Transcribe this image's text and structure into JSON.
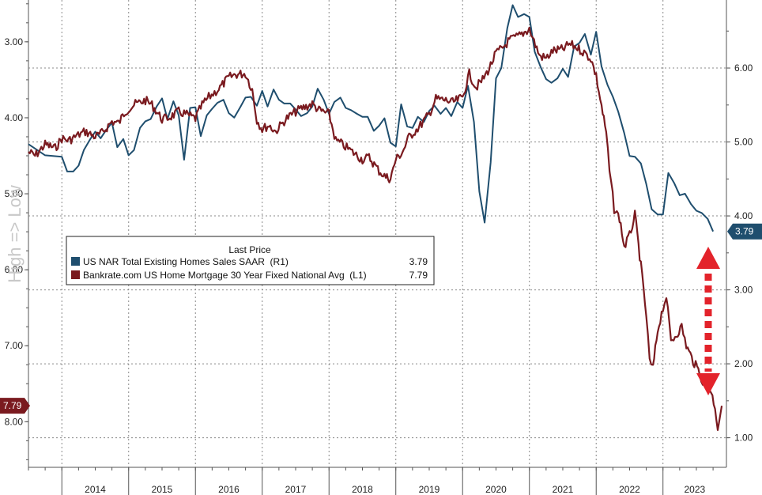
{
  "chart_data": {
    "type": "line",
    "legend": {
      "title": "Last Price",
      "placement": "center-left",
      "entries": [
        {
          "label": "US NAR Total Existing Homes Sales SAAR  (R1)",
          "value": "3.79",
          "color": "#1f4e6e"
        },
        {
          "label": "Bankrate.com US Home Mortgage 30 Year Fixed National Avg  (L1)",
          "value": "7.79",
          "color": "#7a1a1f"
        }
      ]
    },
    "side_annotation": "High => Low",
    "x_years": [
      "2014",
      "2015",
      "2016",
      "2017",
      "2018",
      "2019",
      "2020",
      "2021",
      "2022",
      "2023"
    ],
    "x_range": [
      2013.5,
      2023.95
    ],
    "left_axis": {
      "inverted": true,
      "range": [
        2.45,
        8.6
      ],
      "ticks": [
        "3.00",
        "4.00",
        "5.00",
        "6.00",
        "7.00",
        "8.00"
      ],
      "last_value_label": "7.79"
    },
    "right_axis": {
      "range": [
        0.6,
        6.92
      ],
      "ticks": [
        "1.00",
        "2.00",
        "3.00",
        "4.00",
        "5.00",
        "6.00"
      ],
      "last_value_label": "3.79"
    },
    "grid": true,
    "series": [
      {
        "name": "US NAR Total Existing Homes Sales SAAR  (R1)",
        "axis": "right",
        "color": "#1f4e6e",
        "points": [
          [
            2013.5,
            4.97
          ],
          [
            2013.75,
            4.82
          ],
          [
            2014.0,
            4.8
          ],
          [
            2014.08,
            4.6
          ],
          [
            2014.17,
            4.6
          ],
          [
            2014.25,
            4.68
          ],
          [
            2014.33,
            4.89
          ],
          [
            2014.42,
            5.03
          ],
          [
            2014.5,
            5.14
          ],
          [
            2014.58,
            5.05
          ],
          [
            2014.67,
            5.17
          ],
          [
            2014.75,
            5.26
          ],
          [
            2014.83,
            4.93
          ],
          [
            2014.92,
            5.04
          ],
          [
            2015.0,
            4.82
          ],
          [
            2015.08,
            4.89
          ],
          [
            2015.17,
            5.19
          ],
          [
            2015.25,
            5.28
          ],
          [
            2015.33,
            5.31
          ],
          [
            2015.42,
            5.48
          ],
          [
            2015.5,
            5.59
          ],
          [
            2015.58,
            5.31
          ],
          [
            2015.67,
            5.55
          ],
          [
            2015.75,
            5.36
          ],
          [
            2015.83,
            4.76
          ],
          [
            2015.92,
            5.46
          ],
          [
            2016.0,
            5.47
          ],
          [
            2016.08,
            5.08
          ],
          [
            2016.17,
            5.36
          ],
          [
            2016.25,
            5.45
          ],
          [
            2016.33,
            5.53
          ],
          [
            2016.42,
            5.57
          ],
          [
            2016.5,
            5.39
          ],
          [
            2016.58,
            5.33
          ],
          [
            2016.67,
            5.47
          ],
          [
            2016.75,
            5.6
          ],
          [
            2016.83,
            5.61
          ],
          [
            2016.92,
            5.49
          ],
          [
            2017.0,
            5.69
          ],
          [
            2017.08,
            5.48
          ],
          [
            2017.17,
            5.71
          ],
          [
            2017.25,
            5.57
          ],
          [
            2017.33,
            5.52
          ],
          [
            2017.42,
            5.52
          ],
          [
            2017.5,
            5.44
          ],
          [
            2017.58,
            5.35
          ],
          [
            2017.67,
            5.39
          ],
          [
            2017.75,
            5.48
          ],
          [
            2017.83,
            5.72
          ],
          [
            2017.92,
            5.57
          ],
          [
            2018.0,
            5.38
          ],
          [
            2018.08,
            5.54
          ],
          [
            2018.17,
            5.6
          ],
          [
            2018.25,
            5.46
          ],
          [
            2018.33,
            5.43
          ],
          [
            2018.42,
            5.38
          ],
          [
            2018.5,
            5.34
          ],
          [
            2018.58,
            5.34
          ],
          [
            2018.67,
            5.15
          ],
          [
            2018.75,
            5.22
          ],
          [
            2018.83,
            5.32
          ],
          [
            2018.92,
            4.99
          ],
          [
            2019.0,
            4.94
          ],
          [
            2019.08,
            5.51
          ],
          [
            2019.17,
            5.21
          ],
          [
            2019.25,
            5.19
          ],
          [
            2019.33,
            5.34
          ],
          [
            2019.42,
            5.27
          ],
          [
            2019.5,
            5.42
          ],
          [
            2019.58,
            5.49
          ],
          [
            2019.67,
            5.38
          ],
          [
            2019.75,
            5.46
          ],
          [
            2019.83,
            5.35
          ],
          [
            2019.92,
            5.54
          ],
          [
            2020.0,
            5.46
          ],
          [
            2020.08,
            5.76
          ],
          [
            2020.17,
            5.27
          ],
          [
            2020.25,
            4.33
          ],
          [
            2020.33,
            3.91
          ],
          [
            2020.42,
            4.72
          ],
          [
            2020.5,
            5.86
          ],
          [
            2020.58,
            6.0
          ],
          [
            2020.67,
            6.54
          ],
          [
            2020.75,
            6.85
          ],
          [
            2020.83,
            6.69
          ],
          [
            2020.92,
            6.73
          ],
          [
            2021.0,
            6.69
          ],
          [
            2021.08,
            6.22
          ],
          [
            2021.17,
            6.01
          ],
          [
            2021.25,
            5.85
          ],
          [
            2021.33,
            5.8
          ],
          [
            2021.42,
            5.86
          ],
          [
            2021.5,
            5.99
          ],
          [
            2021.58,
            5.88
          ],
          [
            2021.67,
            6.29
          ],
          [
            2021.75,
            6.34
          ],
          [
            2021.83,
            6.46
          ],
          [
            2021.92,
            6.18
          ],
          [
            2022.0,
            6.49
          ],
          [
            2022.08,
            6.02
          ],
          [
            2022.17,
            5.77
          ],
          [
            2022.25,
            5.61
          ],
          [
            2022.33,
            5.41
          ],
          [
            2022.42,
            5.12
          ],
          [
            2022.5,
            4.81
          ],
          [
            2022.58,
            4.8
          ],
          [
            2022.67,
            4.71
          ],
          [
            2022.75,
            4.43
          ],
          [
            2022.83,
            4.09
          ],
          [
            2022.92,
            4.02
          ],
          [
            2023.0,
            4.02
          ],
          [
            2023.08,
            4.58
          ],
          [
            2023.17,
            4.44
          ],
          [
            2023.25,
            4.28
          ],
          [
            2023.33,
            4.3
          ],
          [
            2023.42,
            4.16
          ],
          [
            2023.5,
            4.07
          ],
          [
            2023.58,
            4.04
          ],
          [
            2023.67,
            3.96
          ],
          [
            2023.75,
            3.79
          ]
        ]
      },
      {
        "name": "Bankrate.com US Home Mortgage 30 Year Fixed National Avg  (L1)",
        "axis": "left",
        "color": "#7a1a1f",
        "points": [
          [
            2013.5,
            4.45
          ],
          [
            2013.6,
            4.5
          ],
          [
            2013.75,
            4.35
          ],
          [
            2013.9,
            4.4
          ],
          [
            2014.0,
            4.27
          ],
          [
            2014.1,
            4.3
          ],
          [
            2014.2,
            4.25
          ],
          [
            2014.35,
            4.18
          ],
          [
            2014.5,
            4.25
          ],
          [
            2014.6,
            4.2
          ],
          [
            2014.75,
            4.05
          ],
          [
            2014.85,
            4.07
          ],
          [
            2014.95,
            3.92
          ],
          [
            2015.0,
            3.88
          ],
          [
            2015.1,
            3.82
          ],
          [
            2015.25,
            3.77
          ],
          [
            2015.35,
            3.83
          ],
          [
            2015.5,
            4.02
          ],
          [
            2015.6,
            4.0
          ],
          [
            2015.75,
            3.92
          ],
          [
            2015.85,
            3.95
          ],
          [
            2016.0,
            4.01
          ],
          [
            2016.1,
            3.83
          ],
          [
            2016.2,
            3.73
          ],
          [
            2016.35,
            3.62
          ],
          [
            2016.5,
            3.47
          ],
          [
            2016.6,
            3.43
          ],
          [
            2016.75,
            3.42
          ],
          [
            2016.85,
            3.63
          ],
          [
            2016.92,
            4.03
          ],
          [
            2017.0,
            4.15
          ],
          [
            2017.1,
            4.1
          ],
          [
            2017.2,
            4.18
          ],
          [
            2017.35,
            4.02
          ],
          [
            2017.5,
            3.92
          ],
          [
            2017.6,
            3.87
          ],
          [
            2017.75,
            3.82
          ],
          [
            2017.85,
            3.9
          ],
          [
            2018.0,
            3.95
          ],
          [
            2018.1,
            4.3
          ],
          [
            2018.2,
            4.35
          ],
          [
            2018.35,
            4.45
          ],
          [
            2018.5,
            4.55
          ],
          [
            2018.6,
            4.52
          ],
          [
            2018.75,
            4.7
          ],
          [
            2018.85,
            4.78
          ],
          [
            2018.92,
            4.8
          ],
          [
            2019.0,
            4.55
          ],
          [
            2019.1,
            4.45
          ],
          [
            2019.2,
            4.25
          ],
          [
            2019.35,
            4.12
          ],
          [
            2019.5,
            3.95
          ],
          [
            2019.6,
            3.75
          ],
          [
            2019.75,
            3.77
          ],
          [
            2019.85,
            3.8
          ],
          [
            2020.0,
            3.73
          ],
          [
            2020.1,
            3.42
          ],
          [
            2020.2,
            3.6
          ],
          [
            2020.3,
            3.5
          ],
          [
            2020.4,
            3.35
          ],
          [
            2020.5,
            3.15
          ],
          [
            2020.6,
            3.08
          ],
          [
            2020.7,
            2.98
          ],
          [
            2020.85,
            2.92
          ],
          [
            2021.0,
            2.83
          ],
          [
            2021.05,
            2.95
          ],
          [
            2021.15,
            3.18
          ],
          [
            2021.25,
            3.22
          ],
          [
            2021.35,
            3.12
          ],
          [
            2021.5,
            3.1
          ],
          [
            2021.6,
            3.03
          ],
          [
            2021.7,
            3.07
          ],
          [
            2021.8,
            3.13
          ],
          [
            2021.92,
            3.22
          ],
          [
            2022.0,
            3.45
          ],
          [
            2022.08,
            3.85
          ],
          [
            2022.15,
            4.2
          ],
          [
            2022.2,
            4.7
          ],
          [
            2022.27,
            5.2
          ],
          [
            2022.35,
            5.32
          ],
          [
            2022.42,
            5.7
          ],
          [
            2022.5,
            5.55
          ],
          [
            2022.58,
            5.28
          ],
          [
            2022.67,
            5.95
          ],
          [
            2022.75,
            6.6
          ],
          [
            2022.8,
            7.2
          ],
          [
            2022.85,
            7.3
          ],
          [
            2022.92,
            6.8
          ],
          [
            2023.0,
            6.5
          ],
          [
            2023.05,
            6.35
          ],
          [
            2023.12,
            6.95
          ],
          [
            2023.2,
            6.85
          ],
          [
            2023.28,
            6.75
          ],
          [
            2023.35,
            7.0
          ],
          [
            2023.45,
            7.2
          ],
          [
            2023.55,
            7.35
          ],
          [
            2023.62,
            7.55
          ],
          [
            2023.7,
            7.55
          ],
          [
            2023.78,
            7.8
          ],
          [
            2023.82,
            8.08
          ],
          [
            2023.88,
            7.79
          ]
        ]
      }
    ]
  }
}
